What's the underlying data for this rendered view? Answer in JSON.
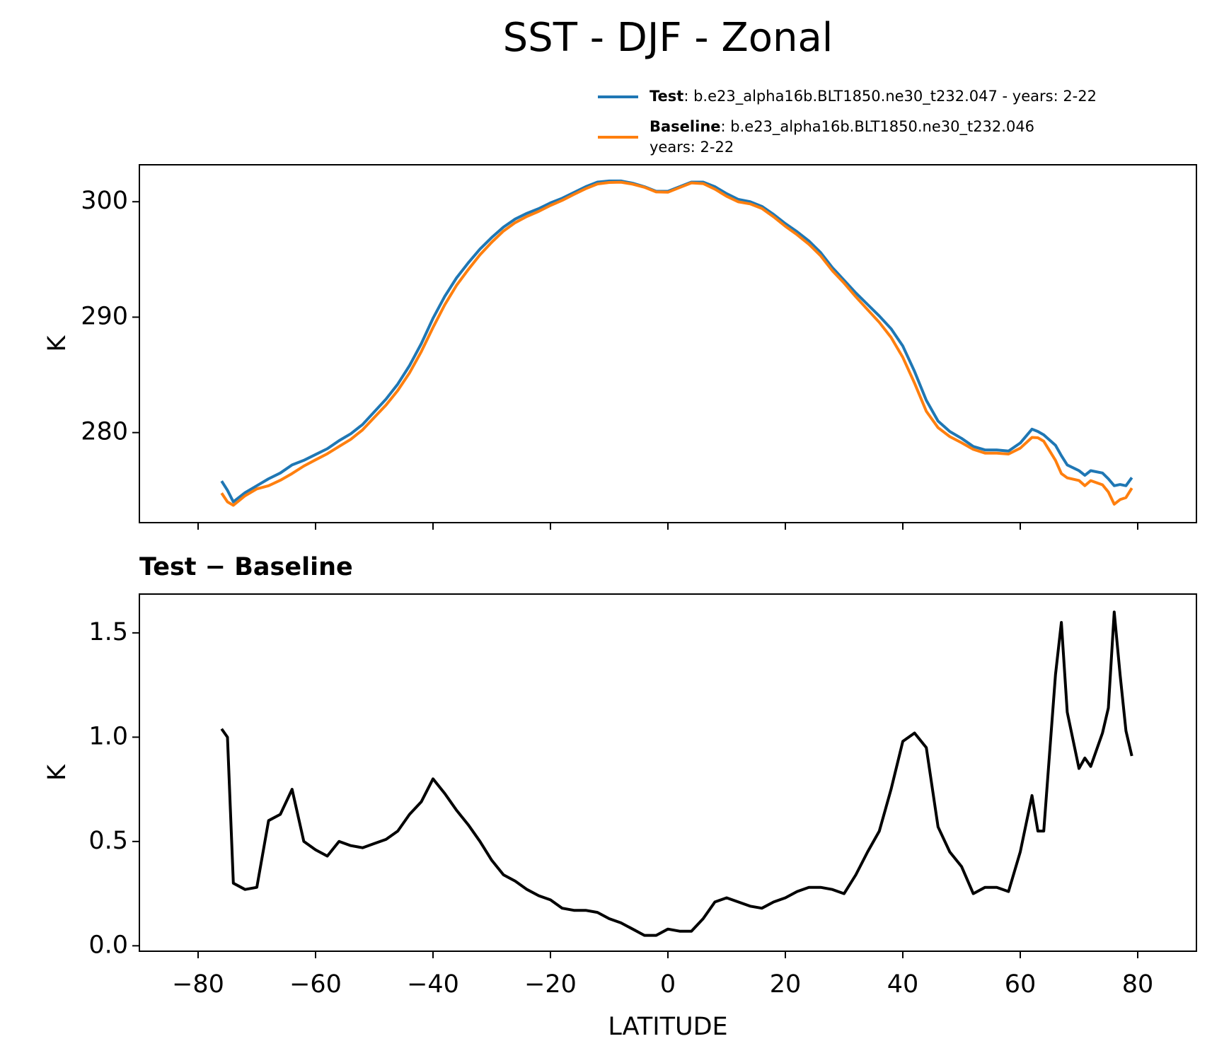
{
  "title": "SST - DJF - Zonal",
  "chart_data": [
    {
      "type": "line",
      "ylabel": "K",
      "x": [
        -76,
        -75,
        -74,
        -72,
        -70,
        -68,
        -66,
        -64,
        -62,
        -60,
        -58,
        -56,
        -54,
        -52,
        -50,
        -48,
        -46,
        -44,
        -42,
        -40,
        -38,
        -36,
        -34,
        -32,
        -30,
        -28,
        -26,
        -24,
        -22,
        -20,
        -18,
        -16,
        -14,
        -12,
        -10,
        -8,
        -6,
        -4,
        -2,
        0,
        2,
        4,
        6,
        8,
        10,
        12,
        14,
        16,
        18,
        20,
        22,
        24,
        26,
        28,
        30,
        32,
        34,
        36,
        38,
        40,
        42,
        44,
        46,
        48,
        50,
        52,
        54,
        56,
        58,
        60,
        62,
        63,
        64,
        66,
        67,
        68,
        70,
        71,
        72,
        74,
        75,
        76,
        77,
        78,
        79
      ],
      "series": [
        {
          "name": "Test",
          "case": ": b.e23_alpha16b.BLT1850.ne30_t232.047 - years: 2-22",
          "color": "#1f77b4",
          "values": [
            275.8,
            275.0,
            274.0,
            274.8,
            275.4,
            276.0,
            276.5,
            277.2,
            277.6,
            278.1,
            278.6,
            279.3,
            279.9,
            280.7,
            281.8,
            282.9,
            284.2,
            285.8,
            287.7,
            289.9,
            291.8,
            293.4,
            294.7,
            295.9,
            296.9,
            297.8,
            298.5,
            299.0,
            299.4,
            299.9,
            300.3,
            300.8,
            301.3,
            301.7,
            301.8,
            301.8,
            301.6,
            301.3,
            300.9,
            300.9,
            301.3,
            301.7,
            301.7,
            301.3,
            300.7,
            300.2,
            300.0,
            299.6,
            298.9,
            298.1,
            297.4,
            296.6,
            295.6,
            294.3,
            293.2,
            292.1,
            291.1,
            290.1,
            289.0,
            287.5,
            285.3,
            282.8,
            281.0,
            280.1,
            279.5,
            278.8,
            278.5,
            278.5,
            278.4,
            279.1,
            280.3,
            280.1,
            279.8,
            278.9,
            278.0,
            277.2,
            276.7,
            276.3,
            276.7,
            276.5,
            276.0,
            275.4,
            275.5,
            275.4,
            276.1
          ]
        },
        {
          "name": "Baseline",
          "case": [
            ": b.e23_alpha16b.BLT1850.ne30_t232.046",
            "years: 2-22"
          ],
          "color": "#ff7f0e",
          "values": [
            274.76,
            274.0,
            273.7,
            274.53,
            275.12,
            275.4,
            275.87,
            276.45,
            277.1,
            277.64,
            278.17,
            278.8,
            279.42,
            280.23,
            281.31,
            282.39,
            283.65,
            285.17,
            287.01,
            289.1,
            291.07,
            292.75,
            294.12,
            295.4,
            296.49,
            297.46,
            298.19,
            298.73,
            299.16,
            299.68,
            300.12,
            300.63,
            301.13,
            301.54,
            301.67,
            301.69,
            301.52,
            301.25,
            300.85,
            300.82,
            301.23,
            301.63,
            301.57,
            301.09,
            300.47,
            299.99,
            299.81,
            299.42,
            298.69,
            297.87,
            297.14,
            296.32,
            295.32,
            294.03,
            292.95,
            291.76,
            290.65,
            289.55,
            288.25,
            286.52,
            284.28,
            281.85,
            280.43,
            279.65,
            279.12,
            278.55,
            278.22,
            278.22,
            278.14,
            278.65,
            279.58,
            279.55,
            279.25,
            277.6,
            276.45,
            276.08,
            275.85,
            275.4,
            275.84,
            275.48,
            274.86,
            273.8,
            274.2,
            274.37,
            275.19
          ]
        }
      ],
      "xlim": [
        -90,
        90
      ],
      "xticks": [
        -80,
        -60,
        -40,
        -20,
        0,
        20,
        40,
        60,
        80
      ],
      "ylim": [
        272.2,
        303.2
      ],
      "yticks": [
        280,
        290,
        300
      ]
    },
    {
      "type": "line",
      "title": "Test − Baseline",
      "xlabel": "LATITUDE",
      "ylabel": "K",
      "x": [
        -76,
        -75,
        -74,
        -72,
        -70,
        -68,
        -66,
        -64,
        -62,
        -60,
        -58,
        -56,
        -54,
        -52,
        -50,
        -48,
        -46,
        -44,
        -42,
        -40,
        -38,
        -36,
        -34,
        -32,
        -30,
        -28,
        -26,
        -24,
        -22,
        -20,
        -18,
        -16,
        -14,
        -12,
        -10,
        -8,
        -6,
        -4,
        -2,
        0,
        2,
        4,
        6,
        8,
        10,
        12,
        14,
        16,
        18,
        20,
        22,
        24,
        26,
        28,
        30,
        32,
        34,
        36,
        38,
        40,
        42,
        44,
        46,
        48,
        50,
        52,
        54,
        56,
        58,
        60,
        62,
        63,
        64,
        66,
        67,
        68,
        70,
        71,
        72,
        74,
        75,
        76,
        77,
        78,
        79
      ],
      "series": [
        {
          "color": "#000000",
          "values": [
            1.04,
            1.0,
            0.3,
            0.27,
            0.28,
            0.6,
            0.63,
            0.75,
            0.5,
            0.46,
            0.43,
            0.5,
            0.48,
            0.47,
            0.49,
            0.51,
            0.55,
            0.63,
            0.69,
            0.8,
            0.73,
            0.65,
            0.58,
            0.5,
            0.41,
            0.34,
            0.31,
            0.27,
            0.24,
            0.22,
            0.18,
            0.17,
            0.17,
            0.16,
            0.13,
            0.11,
            0.08,
            0.05,
            0.05,
            0.08,
            0.07,
            0.07,
            0.13,
            0.21,
            0.23,
            0.21,
            0.19,
            0.18,
            0.21,
            0.23,
            0.26,
            0.28,
            0.28,
            0.27,
            0.25,
            0.34,
            0.45,
            0.55,
            0.75,
            0.98,
            1.02,
            0.95,
            0.57,
            0.45,
            0.38,
            0.25,
            0.28,
            0.28,
            0.26,
            0.45,
            0.72,
            0.55,
            0.55,
            1.3,
            1.55,
            1.12,
            0.85,
            0.9,
            0.86,
            1.02,
            1.14,
            1.6,
            1.3,
            1.03,
            0.91
          ]
        }
      ],
      "xlim": [
        -90,
        90
      ],
      "xticks": [
        {
          "value": -80,
          "label": "−80"
        },
        {
          "value": -60,
          "label": "−60"
        },
        {
          "value": -40,
          "label": "−40"
        },
        {
          "value": -20,
          "label": "−20"
        },
        0,
        20,
        40,
        60,
        80
      ],
      "ylim": [
        -0.026,
        1.686
      ],
      "yticks": [
        {
          "value": 0,
          "label": "0.0"
        },
        0.5,
        {
          "value": 1,
          "label": "1.0"
        },
        1.5
      ]
    }
  ]
}
